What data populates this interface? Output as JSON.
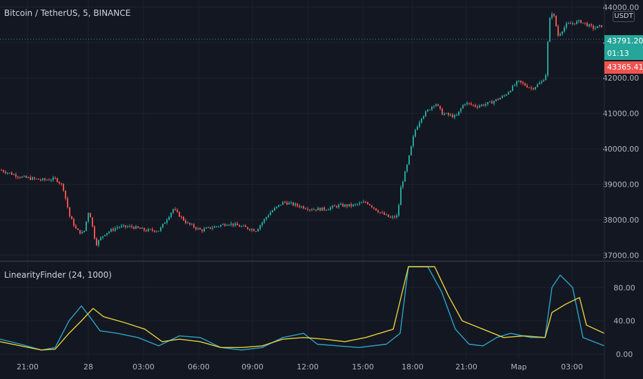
{
  "header": {
    "symbol_title": "Bitcoin / TetherUS, 5, BINANCE",
    "unit": "USDT"
  },
  "indicator": {
    "title": "LinearityFinder (24, 1000)"
  },
  "tags": {
    "last_price": "43791.20",
    "countdown": "01:13",
    "low_price": "43365.41"
  },
  "colors": {
    "up": "#26a69a",
    "down": "#ef5350",
    "series_blue": "#2ca5c9",
    "series_yellow": "#e8d23a"
  },
  "chart_data": [
    {
      "type": "candlestick",
      "y_ticks": [
        "44000.00",
        "43000.00",
        "42000.00",
        "41000.00",
        "40000.00",
        "39000.00",
        "38000.00",
        "37000.00"
      ],
      "ylim": [
        36850,
        44200
      ],
      "price_path": [
        [
          0,
          39400
        ],
        [
          30,
          39200
        ],
        [
          60,
          39120
        ],
        [
          80,
          39150
        ],
        [
          90,
          38950
        ],
        [
          100,
          38100
        ],
        [
          110,
          37700
        ],
        [
          120,
          37600
        ],
        [
          128,
          38300
        ],
        [
          138,
          37300
        ],
        [
          150,
          37600
        ],
        [
          170,
          37800
        ],
        [
          190,
          37800
        ],
        [
          210,
          37700
        ],
        [
          230,
          37700
        ],
        [
          250,
          38300
        ],
        [
          270,
          37900
        ],
        [
          290,
          37700
        ],
        [
          310,
          37800
        ],
        [
          330,
          37900
        ],
        [
          350,
          37800
        ],
        [
          370,
          37700
        ],
        [
          390,
          38200
        ],
        [
          410,
          38500
        ],
        [
          430,
          38400
        ],
        [
          450,
          38300
        ],
        [
          470,
          38300
        ],
        [
          490,
          38400
        ],
        [
          510,
          38400
        ],
        [
          530,
          38500
        ],
        [
          550,
          38200
        ],
        [
          565,
          38050
        ],
        [
          575,
          38100
        ],
        [
          580,
          38900
        ],
        [
          590,
          39600
        ],
        [
          600,
          40500
        ],
        [
          610,
          40900
        ],
        [
          620,
          41100
        ],
        [
          630,
          41300
        ],
        [
          640,
          41000
        ],
        [
          660,
          40900
        ],
        [
          672,
          41300
        ],
        [
          690,
          41200
        ],
        [
          710,
          41300
        ],
        [
          730,
          41500
        ],
        [
          750,
          41900
        ],
        [
          770,
          41700
        ],
        [
          785,
          41900
        ],
        [
          790,
          42100
        ],
        [
          795,
          43600
        ],
        [
          800,
          43900
        ],
        [
          808,
          43200
        ],
        [
          820,
          43500
        ],
        [
          840,
          43600
        ],
        [
          860,
          43400
        ],
        [
          876,
          43500
        ]
      ]
    },
    {
      "type": "line",
      "y_ticks": [
        "80.00",
        "40.00",
        "0.00"
      ],
      "ylim": [
        -5,
        110
      ],
      "x_ticks": [
        "21:00",
        "28",
        "03:00",
        "06:00",
        "09:00",
        "12:00",
        "15:00",
        "18:00",
        "21:00",
        "Мар",
        "03:00"
      ],
      "series": [
        {
          "color": "blue",
          "points": [
            [
              0,
              18
            ],
            [
              30,
              12
            ],
            [
              60,
              5
            ],
            [
              80,
              8
            ],
            [
              100,
              40
            ],
            [
              118,
              58
            ],
            [
              130,
              45
            ],
            [
              145,
              28
            ],
            [
              170,
              25
            ],
            [
              200,
              20
            ],
            [
              230,
              10
            ],
            [
              260,
              22
            ],
            [
              290,
              20
            ],
            [
              320,
              8
            ],
            [
              350,
              5
            ],
            [
              380,
              8
            ],
            [
              410,
              20
            ],
            [
              440,
              25
            ],
            [
              460,
              12
            ],
            [
              490,
              10
            ],
            [
              520,
              8
            ],
            [
              560,
              12
            ],
            [
              580,
              25
            ],
            [
              592,
              105
            ],
            [
              620,
              105
            ],
            [
              640,
              75
            ],
            [
              660,
              30
            ],
            [
              680,
              12
            ],
            [
              700,
              10
            ],
            [
              720,
              20
            ],
            [
              740,
              25
            ],
            [
              770,
              20
            ],
            [
              790,
              20
            ],
            [
              800,
              80
            ],
            [
              812,
              95
            ],
            [
              830,
              80
            ],
            [
              845,
              20
            ],
            [
              876,
              10
            ]
          ]
        },
        {
          "color": "yellow",
          "points": [
            [
              0,
              15
            ],
            [
              30,
              10
            ],
            [
              60,
              5
            ],
            [
              80,
              6
            ],
            [
              100,
              25
            ],
            [
              118,
              40
            ],
            [
              135,
              55
            ],
            [
              150,
              45
            ],
            [
              180,
              38
            ],
            [
              210,
              30
            ],
            [
              235,
              15
            ],
            [
              260,
              18
            ],
            [
              290,
              15
            ],
            [
              320,
              8
            ],
            [
              350,
              8
            ],
            [
              380,
              10
            ],
            [
              410,
              18
            ],
            [
              440,
              20
            ],
            [
              470,
              18
            ],
            [
              500,
              15
            ],
            [
              530,
              20
            ],
            [
              570,
              30
            ],
            [
              592,
              105
            ],
            [
              630,
              105
            ],
            [
              650,
              70
            ],
            [
              670,
              40
            ],
            [
              700,
              30
            ],
            [
              730,
              20
            ],
            [
              760,
              22
            ],
            [
              790,
              20
            ],
            [
              800,
              50
            ],
            [
              820,
              60
            ],
            [
              840,
              68
            ],
            [
              850,
              35
            ],
            [
              876,
              25
            ]
          ]
        }
      ]
    }
  ]
}
